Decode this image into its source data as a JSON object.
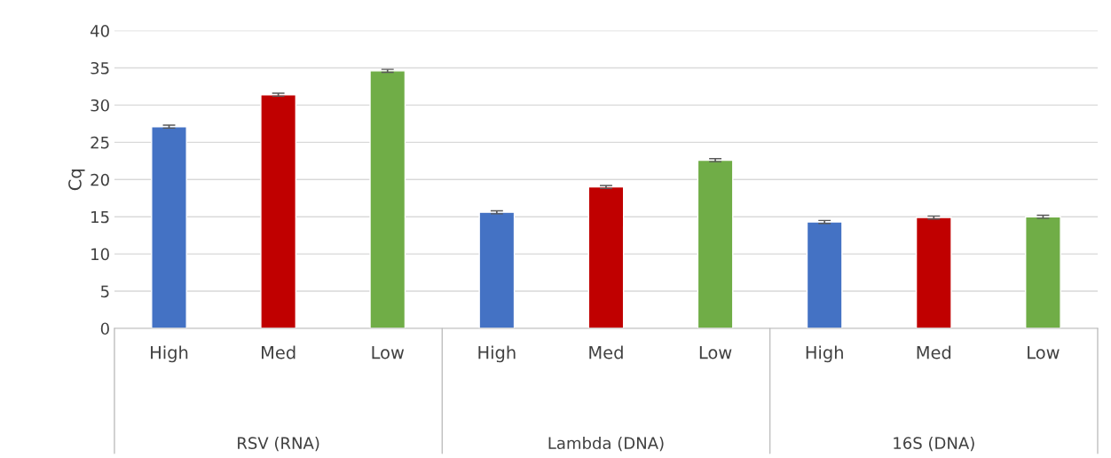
{
  "chart_data": {
    "type": "bar",
    "ylabel": "Cq",
    "categories": [
      "High",
      "Med",
      "Low",
      "High",
      "Med",
      "Low",
      "High",
      "Med",
      "Low"
    ],
    "values": [
      27.1,
      31.4,
      34.6,
      15.6,
      19.0,
      22.6,
      14.3,
      14.9,
      15.0
    ],
    "colors": [
      "#4472c4",
      "#c00000",
      "#70ad47",
      "#4472c4",
      "#c00000",
      "#70ad47",
      "#4472c4",
      "#c00000",
      "#70ad47"
    ],
    "errors": [
      0.2,
      0.2,
      0.2,
      0.2,
      0.2,
      0.2,
      0.2,
      0.2,
      0.2
    ],
    "annotations": [
      "RSV (RNA)",
      "Lambda (DNA)",
      "16S (DNA)"
    ],
    "ylim": [
      0,
      40
    ],
    "yticks": [
      0,
      5,
      10,
      15,
      20,
      25,
      30,
      35,
      40
    ],
    "grid": "y",
    "legend": false
  }
}
